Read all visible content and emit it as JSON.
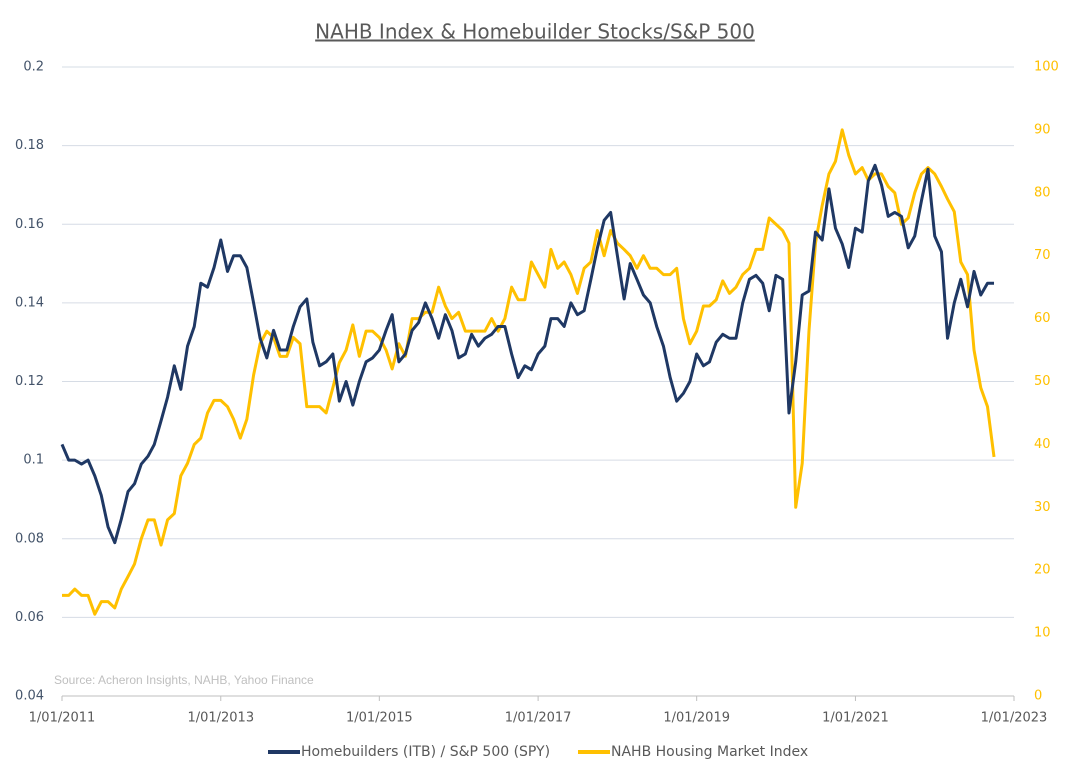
{
  "chart_data": {
    "type": "line",
    "title": "NAHB Index & Homebuilder Stocks/S&P 500",
    "annotation": "Source: Acheron Insights, NAHB, Yahoo Finance",
    "x": [
      "2011-01-01",
      "2011-02-01",
      "2011-03-01",
      "2011-04-01",
      "2011-05-01",
      "2011-06-01",
      "2011-07-01",
      "2011-08-01",
      "2011-09-01",
      "2011-10-01",
      "2011-11-01",
      "2011-12-01",
      "2012-01-01",
      "2012-02-01",
      "2012-03-01",
      "2012-04-01",
      "2012-05-01",
      "2012-06-01",
      "2012-07-01",
      "2012-08-01",
      "2012-09-01",
      "2012-10-01",
      "2012-11-01",
      "2012-12-01",
      "2013-01-01",
      "2013-02-01",
      "2013-03-01",
      "2013-04-01",
      "2013-05-01",
      "2013-06-01",
      "2013-07-01",
      "2013-08-01",
      "2013-09-01",
      "2013-10-01",
      "2013-11-01",
      "2013-12-01",
      "2014-01-01",
      "2014-02-01",
      "2014-03-01",
      "2014-04-01",
      "2014-05-01",
      "2014-06-01",
      "2014-07-01",
      "2014-08-01",
      "2014-09-01",
      "2014-10-01",
      "2014-11-01",
      "2014-12-01",
      "2015-01-01",
      "2015-02-01",
      "2015-03-01",
      "2015-04-01",
      "2015-05-01",
      "2015-06-01",
      "2015-07-01",
      "2015-08-01",
      "2015-09-01",
      "2015-10-01",
      "2015-11-01",
      "2015-12-01",
      "2016-01-01",
      "2016-02-01",
      "2016-03-01",
      "2016-04-01",
      "2016-05-01",
      "2016-06-01",
      "2016-07-01",
      "2016-08-01",
      "2016-09-01",
      "2016-10-01",
      "2016-11-01",
      "2016-12-01",
      "2017-01-01",
      "2017-02-01",
      "2017-03-01",
      "2017-04-01",
      "2017-05-01",
      "2017-06-01",
      "2017-07-01",
      "2017-08-01",
      "2017-09-01",
      "2017-10-01",
      "2017-11-01",
      "2017-12-01",
      "2018-01-01",
      "2018-02-01",
      "2018-03-01",
      "2018-04-01",
      "2018-05-01",
      "2018-06-01",
      "2018-07-01",
      "2018-08-01",
      "2018-09-01",
      "2018-10-01",
      "2018-11-01",
      "2018-12-01",
      "2019-01-01",
      "2019-02-01",
      "2019-03-01",
      "2019-04-01",
      "2019-05-01",
      "2019-06-01",
      "2019-07-01",
      "2019-08-01",
      "2019-09-01",
      "2019-10-01",
      "2019-11-01",
      "2019-12-01",
      "2020-01-01",
      "2020-02-01",
      "2020-03-01",
      "2020-04-01",
      "2020-05-01",
      "2020-06-01",
      "2020-07-01",
      "2020-08-01",
      "2020-09-01",
      "2020-10-01",
      "2020-11-01",
      "2020-12-01",
      "2021-01-01",
      "2021-02-01",
      "2021-03-01",
      "2021-04-01",
      "2021-05-01",
      "2021-06-01",
      "2021-07-01",
      "2021-08-01",
      "2021-09-01",
      "2021-10-01",
      "2021-11-01",
      "2021-12-01",
      "2022-01-01",
      "2022-02-01",
      "2022-03-01",
      "2022-04-01",
      "2022-05-01",
      "2022-06-01",
      "2022-07-01",
      "2022-08-01",
      "2022-09-01",
      "2022-10-01"
    ],
    "series": [
      {
        "name": "Homebuilders (ITB) / S&P 500 (SPY)",
        "color": "#1f3864",
        "axis": "y",
        "values": [
          0.104,
          0.1,
          0.1,
          0.099,
          0.1,
          0.096,
          0.091,
          0.083,
          0.079,
          0.085,
          0.092,
          0.094,
          0.099,
          0.101,
          0.104,
          0.11,
          0.116,
          0.124,
          0.118,
          0.129,
          0.134,
          0.145,
          0.144,
          0.149,
          0.156,
          0.148,
          0.152,
          0.152,
          0.149,
          0.14,
          0.131,
          0.126,
          0.133,
          0.128,
          0.128,
          0.134,
          0.139,
          0.141,
          0.13,
          0.124,
          0.125,
          0.127,
          0.115,
          0.12,
          0.114,
          0.12,
          0.125,
          0.126,
          0.128,
          0.133,
          0.137,
          0.125,
          0.127,
          0.133,
          0.135,
          0.14,
          0.136,
          0.131,
          0.137,
          0.133,
          0.126,
          0.127,
          0.132,
          0.129,
          0.131,
          0.132,
          0.134,
          0.134,
          0.127,
          0.121,
          0.124,
          0.123,
          0.127,
          0.129,
          0.136,
          0.136,
          0.134,
          0.14,
          0.137,
          0.138,
          0.146,
          0.154,
          0.161,
          0.163,
          0.152,
          0.141,
          0.15,
          0.146,
          0.142,
          0.14,
          0.134,
          0.129,
          0.121,
          0.115,
          0.117,
          0.12,
          0.127,
          0.124,
          0.125,
          0.13,
          0.132,
          0.131,
          0.131,
          0.14,
          0.146,
          0.147,
          0.145,
          0.138,
          0.147,
          0.146,
          0.112,
          0.125,
          0.142,
          0.143,
          0.158,
          0.156,
          0.169,
          0.159,
          0.155,
          0.149,
          0.159,
          0.158,
          0.171,
          0.175,
          0.17,
          0.162,
          0.163,
          0.162,
          0.154,
          0.157,
          0.166,
          0.174,
          0.157,
          0.153,
          0.131,
          0.14,
          0.146,
          0.139,
          0.148,
          0.142,
          0.145,
          0.145
        ]
      },
      {
        "name": "NAHB Housing Market Index",
        "color": "#ffc000",
        "axis": "y2",
        "values": [
          16,
          16,
          17,
          16,
          16,
          13,
          15,
          15,
          14,
          17,
          19,
          21,
          25,
          28,
          28,
          24,
          28,
          29,
          35,
          37,
          40,
          41,
          45,
          47,
          47,
          46,
          44,
          41,
          44,
          51,
          56,
          58,
          57,
          54,
          54,
          57,
          56,
          46,
          46,
          46,
          45,
          49,
          53,
          55,
          59,
          54,
          58,
          58,
          57,
          55,
          52,
          56,
          54,
          60,
          60,
          61,
          61,
          65,
          62,
          60,
          61,
          58,
          58,
          58,
          58,
          60,
          58,
          60,
          65,
          63,
          63,
          69,
          67,
          65,
          71,
          68,
          69,
          67,
          64,
          68,
          69,
          74,
          70,
          74,
          72,
          71,
          70,
          68,
          70,
          68,
          68,
          67,
          67,
          68,
          60,
          56,
          58,
          62,
          62,
          63,
          66,
          64,
          65,
          67,
          68,
          71,
          71,
          76,
          75,
          74,
          72,
          30,
          37,
          58,
          72,
          78,
          83,
          85,
          90,
          86,
          83,
          84,
          82,
          83,
          83,
          81,
          80,
          75,
          76,
          80,
          83,
          84,
          83,
          81,
          79,
          77,
          69,
          67,
          55,
          49,
          46,
          38
        ]
      }
    ],
    "xlim": [
      "2011-01-01",
      "2023-01-01"
    ],
    "xticks": [
      {
        "value": "2011-01-01",
        "label": "1/01/2011"
      },
      {
        "value": "2013-01-01",
        "label": "1/01/2013"
      },
      {
        "value": "2015-01-01",
        "label": "1/01/2015"
      },
      {
        "value": "2017-01-01",
        "label": "1/01/2017"
      },
      {
        "value": "2019-01-01",
        "label": "1/01/2019"
      },
      {
        "value": "2021-01-01",
        "label": "1/01/2021"
      },
      {
        "value": "2023-01-01",
        "label": "1/01/2023"
      }
    ],
    "ylim": [
      0.04,
      0.2
    ],
    "yticks": [
      0.04,
      0.06,
      0.08,
      0.1,
      0.12,
      0.14,
      0.16,
      0.18,
      0.2
    ],
    "y2lim": [
      0,
      100
    ],
    "y2ticks": [
      0,
      10,
      20,
      30,
      40,
      50,
      60,
      70,
      80,
      90,
      100
    ],
    "grid": true,
    "legend": "bottom"
  }
}
